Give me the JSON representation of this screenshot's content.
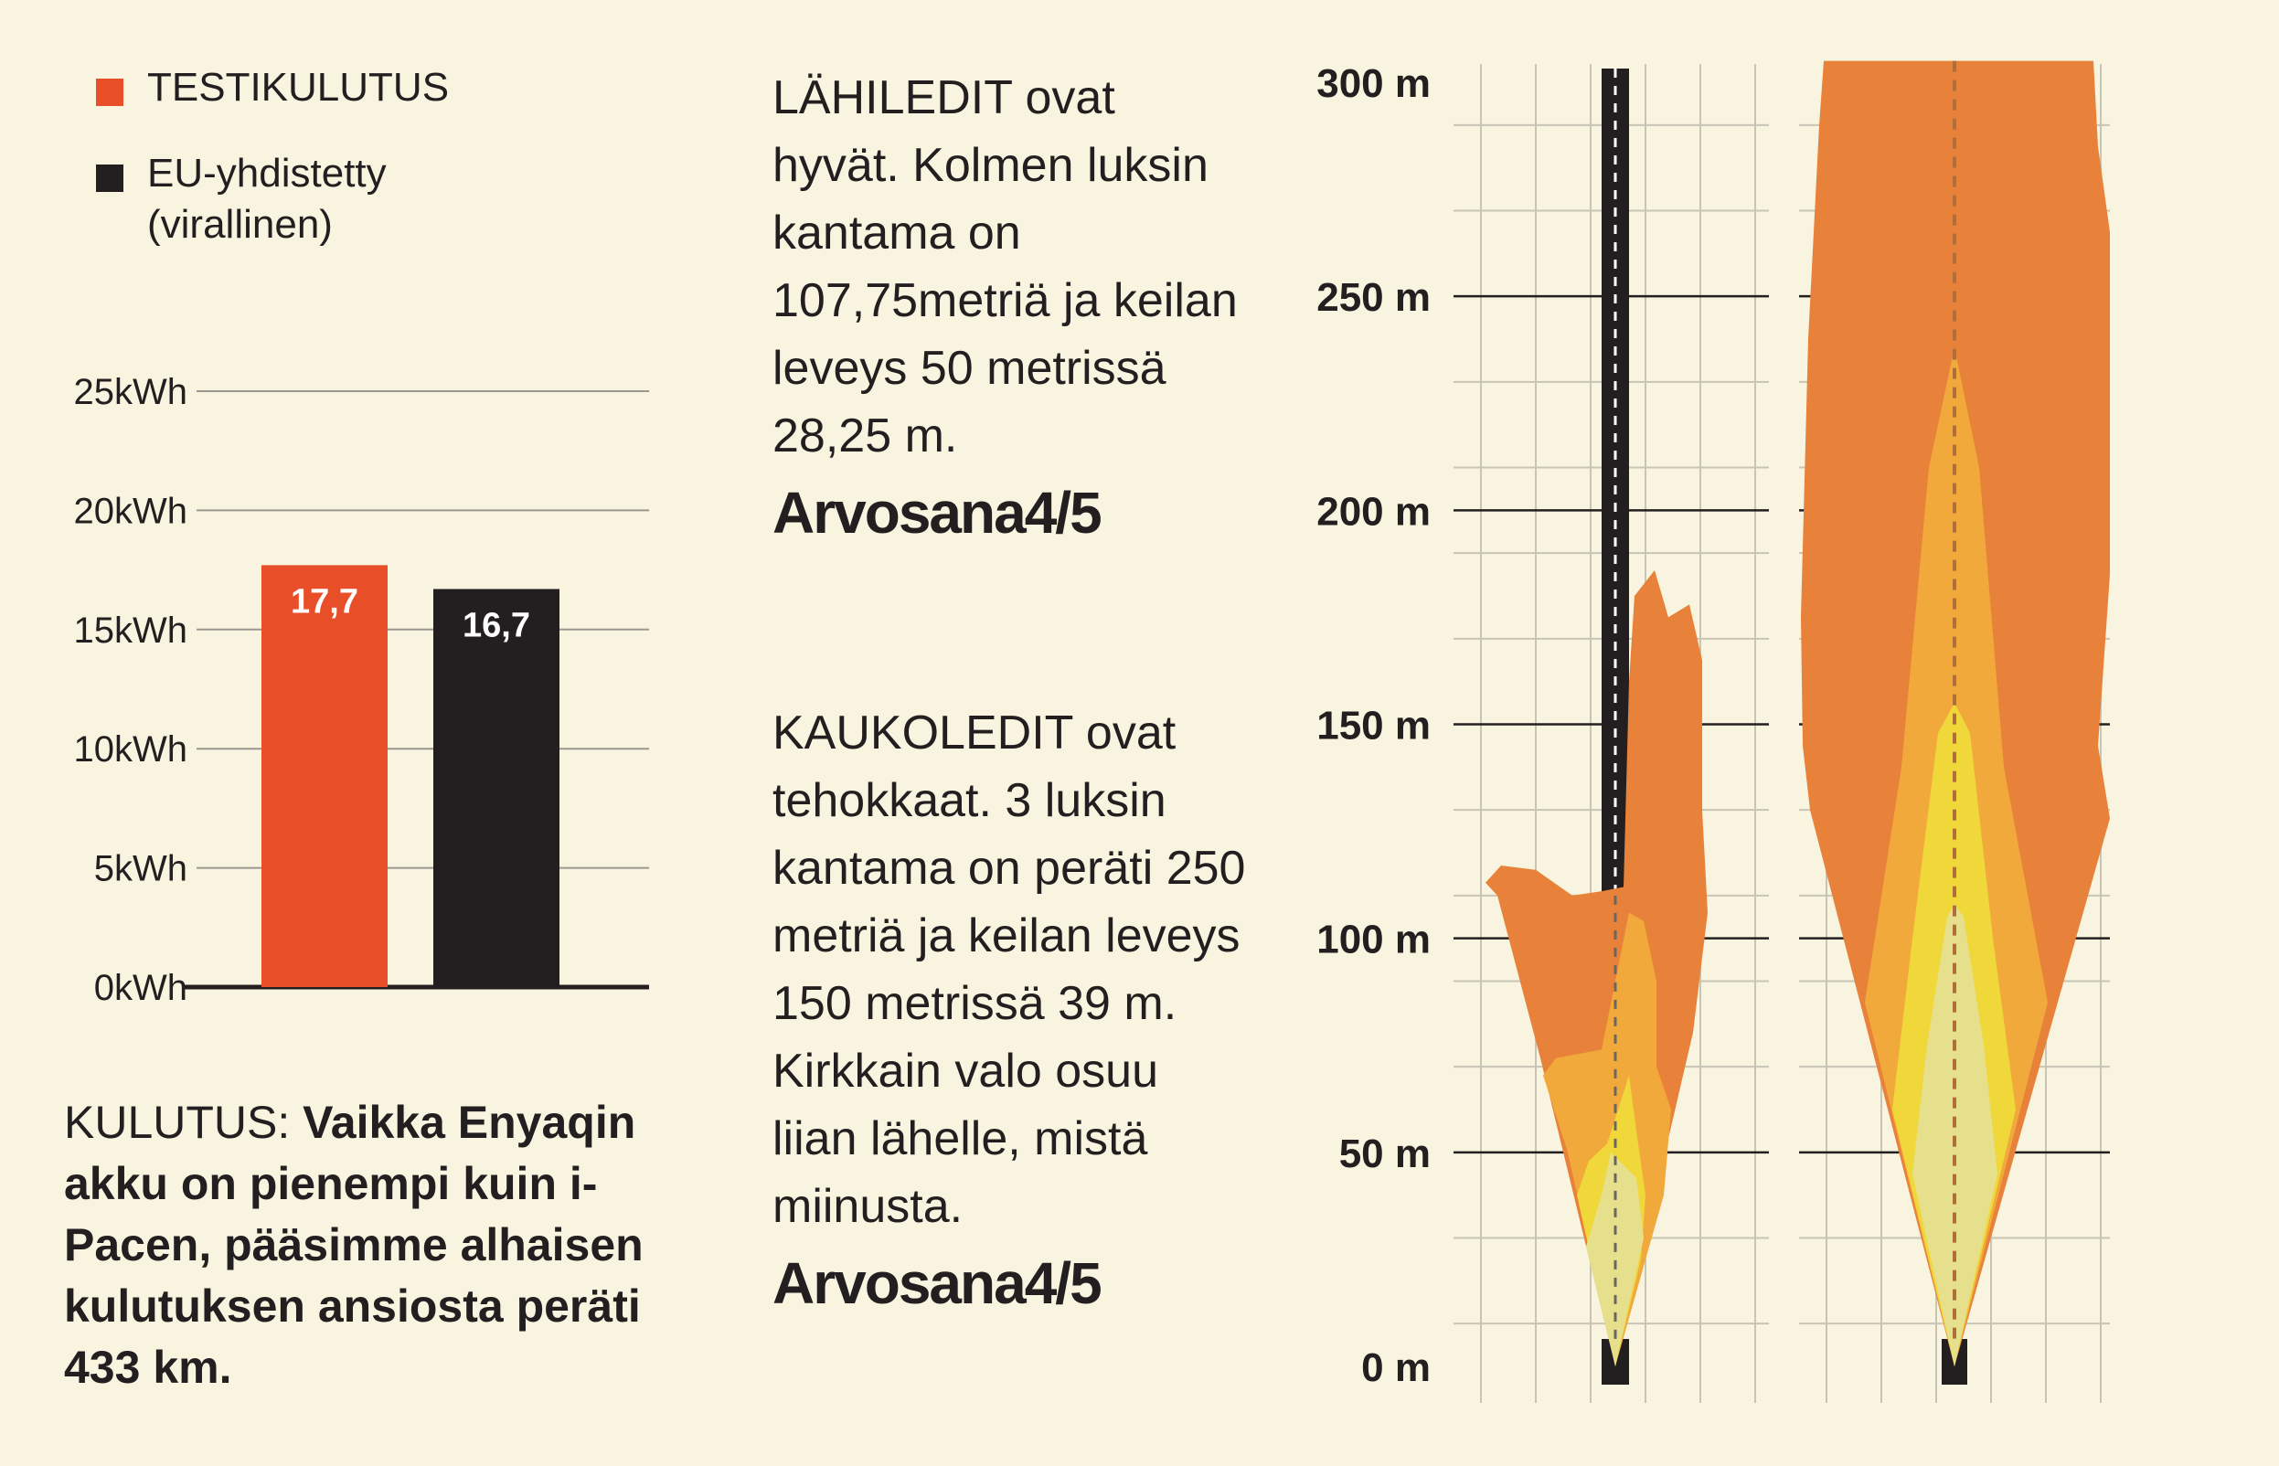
{
  "legend": {
    "items": [
      {
        "label": "TESTIKULUTUS",
        "sub": "",
        "color": "#e84e27"
      },
      {
        "label": "EU-yhdistetty",
        "sub": "(virallinen)",
        "color": "#231f20"
      }
    ]
  },
  "chart_data": [
    {
      "type": "bar",
      "categories": [
        "TESTIKULUTUS",
        "EU-yhdistetty (virallinen)"
      ],
      "values": [
        17.7,
        16.7
      ],
      "value_labels": [
        "17,7",
        "16,7"
      ],
      "colors": [
        "#e84e27",
        "#231f20"
      ],
      "ylim": [
        0,
        25
      ],
      "yticks": [
        0,
        5,
        10,
        15,
        20,
        25
      ],
      "ytick_labels": [
        "0kWh",
        "5kWh",
        "10kWh",
        "15kWh",
        "20kWh",
        "25kWh"
      ],
      "grid": true,
      "legend": "top-left"
    },
    {
      "type": "area",
      "panels": [
        "LÄHILEDIT",
        "KAUKOLEDIT"
      ],
      "ylim": [
        0,
        300
      ],
      "yticks": [
        0,
        50,
        100,
        150,
        200,
        250,
        300
      ],
      "ytick_labels": [
        "0 m",
        "50 m",
        "100 m",
        "150 m",
        "200 m",
        "250 m",
        "300 m"
      ],
      "colors": [
        "#e8823a",
        "#f2a93b",
        "#f0d83a",
        "#e6e08c"
      ],
      "grid": true
    }
  ],
  "consumption": {
    "lead": "KULUTUS:",
    "body": "Vaikka Enyaqin akku on pienempi kuin i-Pacen, pääsimme alhaisen kulutuksen ansiosta peräti 433 km."
  },
  "low_beam": {
    "text": "LÄHILEDIT ovat hyvät. Kolmen luksin kantama on 107,75metriä ja keilan leveys 50 metrissä 28,25 m.",
    "grade": "Arvosana4/5"
  },
  "high_beam": {
    "text": "KAUKOLEDIT ovat tehokkaat. 3 luksin kantama on peräti 250 metriä ja keilan leveys 150 metrissä 39 m. Kirkkain valo osuu liian lähelle, mistä miinusta.",
    "grade": "Arvosana4/5"
  }
}
